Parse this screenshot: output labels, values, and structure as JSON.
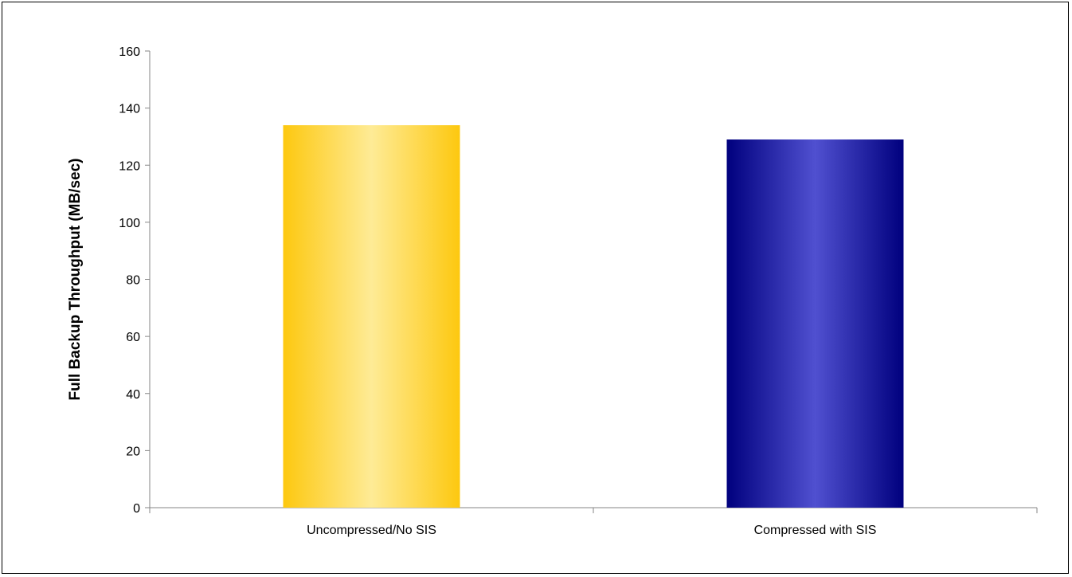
{
  "chart_data": {
    "type": "bar",
    "title": "",
    "xlabel": "",
    "ylabel": "Full Backup Throughput (MB/sec)",
    "ylim": [
      0,
      160
    ],
    "yticks": [
      0,
      20,
      40,
      60,
      80,
      100,
      120,
      140,
      160
    ],
    "grid": false,
    "legend": "none",
    "categories": [
      "Uncompressed/No SIS",
      "Compressed with SIS"
    ],
    "values": [
      134,
      129
    ],
    "colors": [
      {
        "edge": "#fdc80f",
        "center": "#feeb96"
      },
      {
        "edge": "#00007e",
        "center": "#5050d0"
      }
    ]
  }
}
